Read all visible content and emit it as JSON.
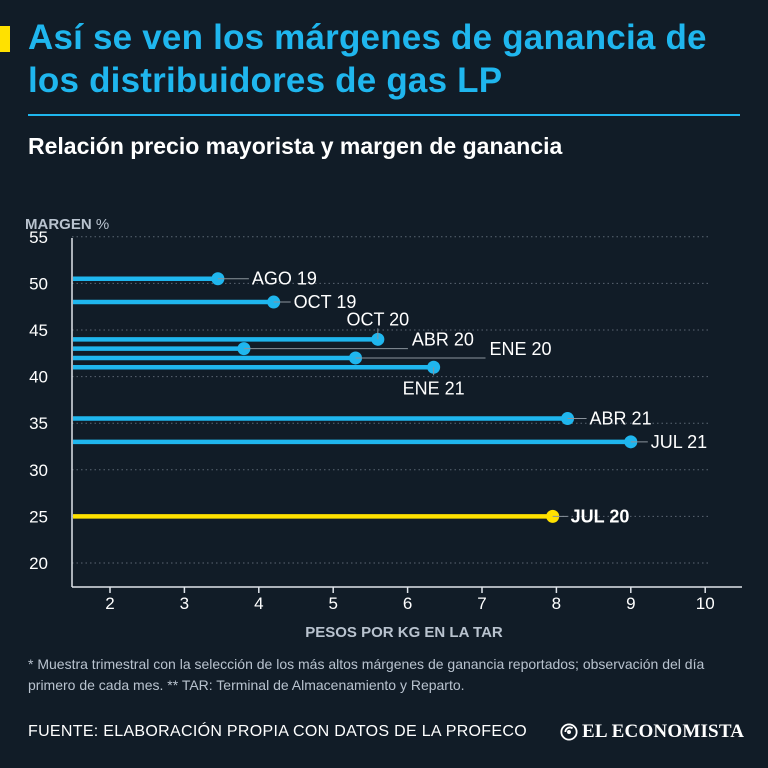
{
  "header": {
    "title": "Así se ven los márgenes de ganancia de los distribuidores de gas LP",
    "subtitle": "Relación precio mayorista y margen de ganancia"
  },
  "colors": {
    "background": "#111c27",
    "accent_blue": "#1fb6ee",
    "highlight_yellow": "#ffe100",
    "leader": "#8a939c",
    "grid": "#5b6673"
  },
  "chart_data": {
    "type": "lollipop",
    "title": "Relación precio mayorista y margen de ganancia",
    "ylabel_bold": "MARGEN",
    "ylabel_unit": "%",
    "xlabel": "PESOS POR KG EN LA TAR",
    "xlim": [
      1.5,
      10.5
    ],
    "ylim": [
      18,
      56
    ],
    "x_ticks": [
      2,
      3,
      4,
      5,
      6,
      7,
      8,
      9,
      10
    ],
    "y_ticks": [
      20,
      25,
      30,
      35,
      40,
      45,
      50,
      55
    ],
    "grid": true,
    "points": [
      {
        "label": "AGO 19",
        "x": 3.45,
        "y": 50.5,
        "highlight": false
      },
      {
        "label": "OCT 19",
        "x": 4.2,
        "y": 48.0,
        "highlight": false
      },
      {
        "label": "OCT 20",
        "x": 5.6,
        "y": 44.0,
        "highlight": false
      },
      {
        "label": "ABR 20",
        "x": 3.8,
        "y": 43.0,
        "highlight": false
      },
      {
        "label": "ENE 20",
        "x": 5.3,
        "y": 42.0,
        "highlight": false
      },
      {
        "label": "ENE 21",
        "x": 6.35,
        "y": 41.0,
        "highlight": false
      },
      {
        "label": "ABR 21",
        "x": 8.15,
        "y": 35.5,
        "highlight": false
      },
      {
        "label": "JUL 21",
        "x": 9.0,
        "y": 33.0,
        "highlight": false
      },
      {
        "label": "JUL 20",
        "x": 7.95,
        "y": 25.0,
        "highlight": true
      }
    ]
  },
  "footer": {
    "note": "* Muestra trimestral con la selección de los más altos márgenes de ganancia reportados; observación del día primero de cada mes. ** TAR: Terminal de Almacenamiento y Reparto.",
    "source": "FUENTE: ELABORACIÓN PROPIA CON DATOS DE LA PROFECO",
    "brand": "EL ECONOMISTA"
  }
}
